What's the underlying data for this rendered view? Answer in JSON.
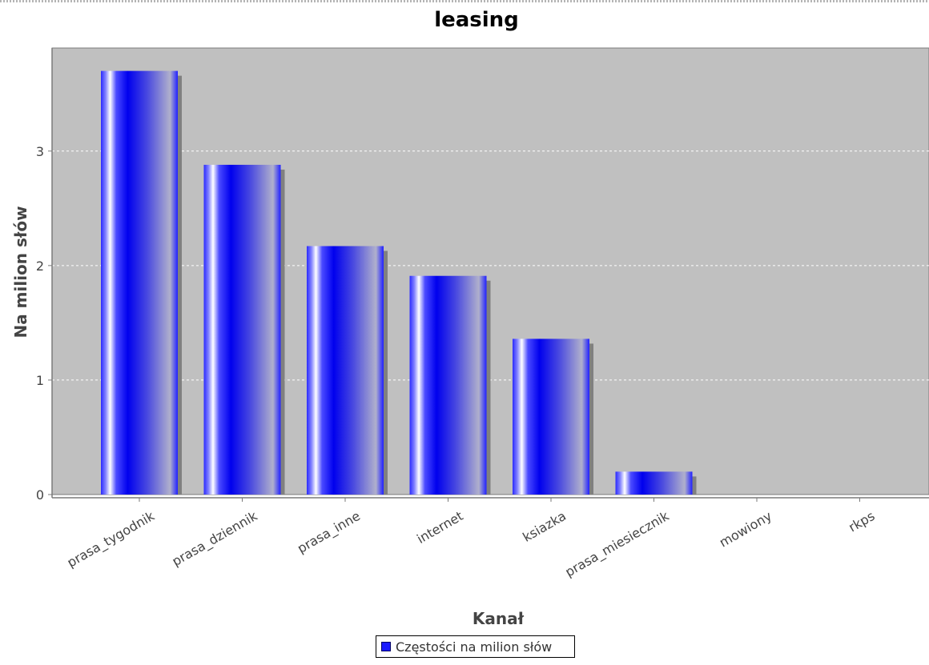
{
  "chart_data": {
    "type": "bar",
    "title": "leasing",
    "xlabel": "Kanał",
    "ylabel": "Na milion słów",
    "categories": [
      "prasa_tygodnik",
      "prasa_dziennik",
      "prasa_inne",
      "internet",
      "ksiazka",
      "prasa_miesiecznik",
      "mowiony",
      "rkps"
    ],
    "series": [
      {
        "name": "Częstości na milion słów",
        "values": [
          3.7,
          2.88,
          2.17,
          1.91,
          1.36,
          0.2,
          0,
          0
        ]
      }
    ],
    "ylim": [
      0,
      3.9
    ],
    "yticks": [
      0,
      1,
      2,
      3
    ],
    "grid": true,
    "legend_position": "bottom",
    "colors": {
      "plot_background": "#c0c0c0",
      "bar_dark": "#0000ff",
      "bar_light": "#ffffff",
      "bar_gray": "#a8a8c8",
      "shadow": "#808080",
      "gridline": "#ffffff"
    }
  }
}
